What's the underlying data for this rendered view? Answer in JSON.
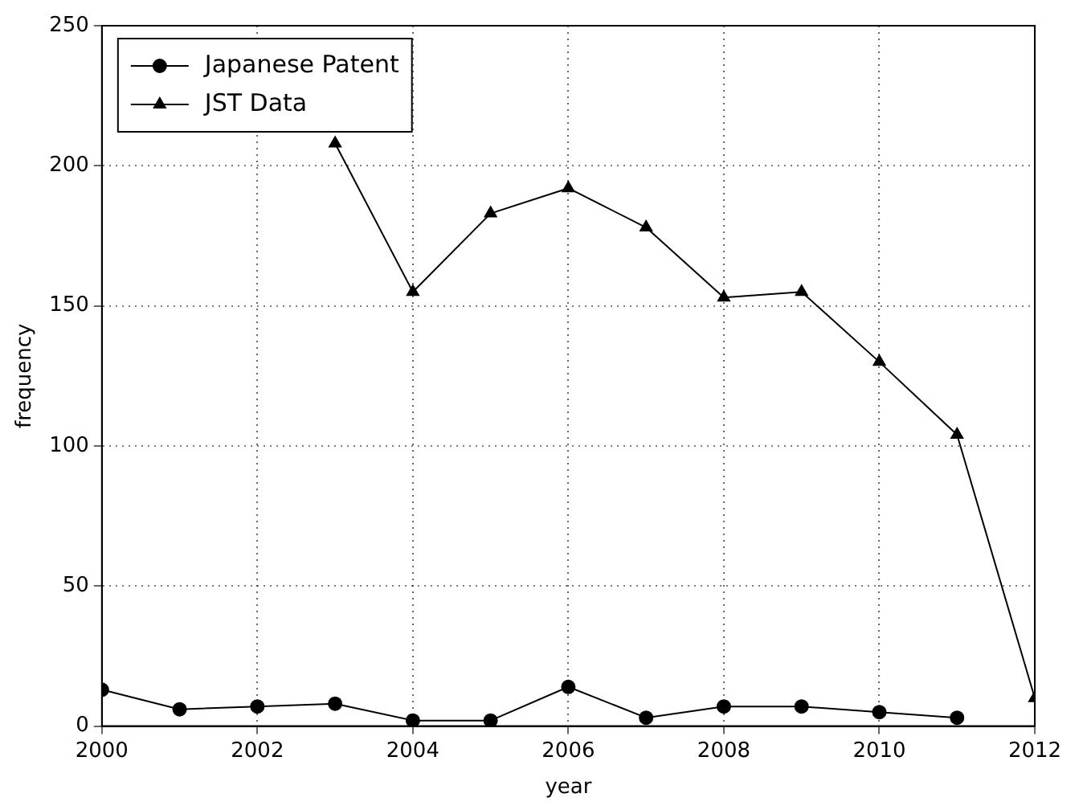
{
  "chart_data": {
    "type": "line",
    "xlabel": "year",
    "ylabel": "frequency",
    "x": [
      2000,
      2001,
      2002,
      2003,
      2004,
      2005,
      2006,
      2007,
      2008,
      2009,
      2010,
      2011,
      2012
    ],
    "series": [
      {
        "name": "Japanese Patent",
        "color": "#000000",
        "marker": "circle",
        "values": [
          13,
          6,
          7,
          8,
          2,
          2,
          14,
          3,
          7,
          7,
          5,
          3,
          null
        ]
      },
      {
        "name": "JST Data",
        "color": "#000000",
        "marker": "triangle",
        "values": [
          null,
          null,
          null,
          208,
          155,
          183,
          192,
          178,
          153,
          155,
          130,
          104,
          10
        ]
      }
    ],
    "xlim": [
      2000,
      2012
    ],
    "xticks": [
      2000,
      2002,
      2004,
      2006,
      2008,
      2010,
      2012
    ],
    "ylim": [
      0,
      250
    ],
    "yticks": [
      0,
      50,
      100,
      150,
      200,
      250
    ],
    "grid": true,
    "legend": "top left",
    "line_style": "solid"
  }
}
